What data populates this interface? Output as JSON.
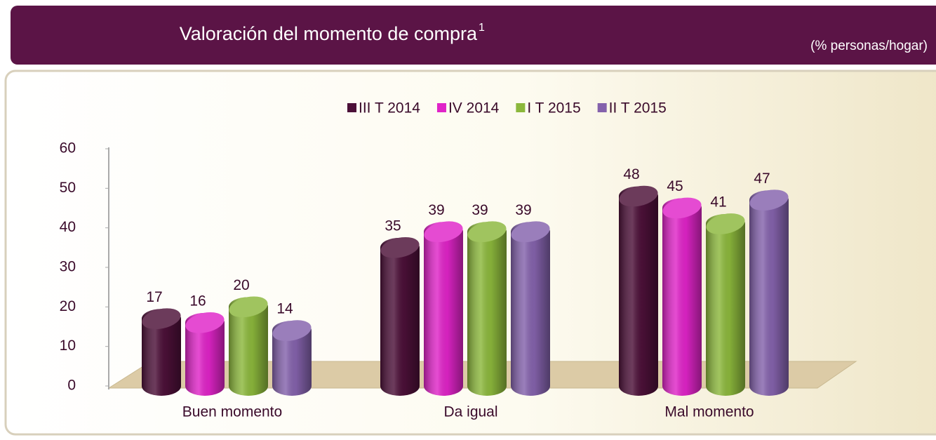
{
  "chart_data": {
    "type": "bar",
    "title": "Valoración del momento de compra",
    "title_superscript": "1",
    "subtitle": "(% personas/hogar)",
    "categories": [
      "Buen momento",
      "Da igual",
      "Mal momento"
    ],
    "series": [
      {
        "name": "III T 2014",
        "color": "#4c1038",
        "values": [
          17,
          35,
          48
        ]
      },
      {
        "name": "IV 2014",
        "color": "#e024c8",
        "values": [
          16,
          39,
          45
        ]
      },
      {
        "name": "I T 2015",
        "color": "#8cb83c",
        "values": [
          20,
          39,
          41
        ]
      },
      {
        "name": "II T 2015",
        "color": "#8462ac",
        "values": [
          14,
          39,
          47
        ]
      }
    ],
    "ylim": [
      0,
      60
    ],
    "yticks": [
      0,
      10,
      20,
      30,
      40,
      50,
      60
    ],
    "legend": "top"
  }
}
